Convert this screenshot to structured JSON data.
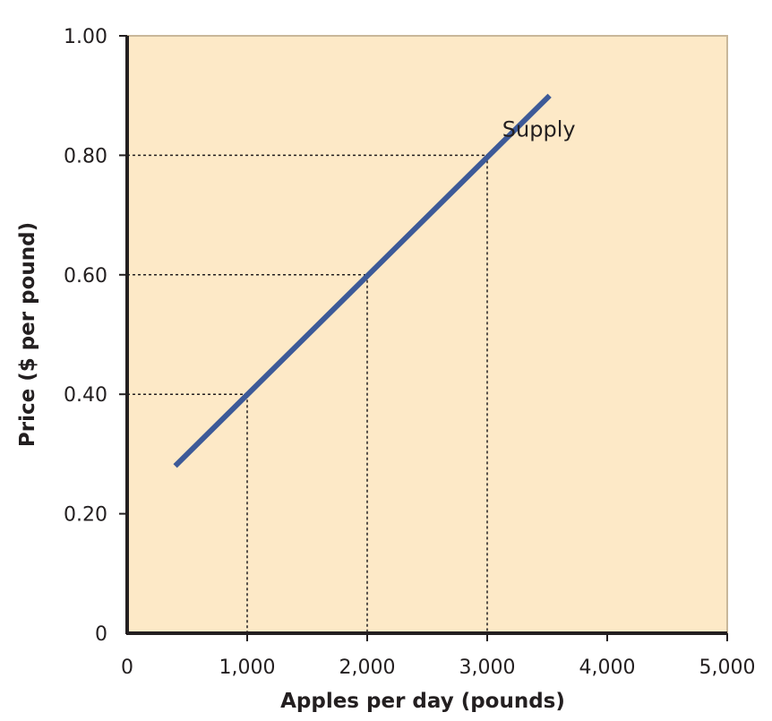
{
  "chart_data": {
    "type": "line",
    "title": "",
    "xlabel": "Apples per day (pounds)",
    "ylabel": "Price ($ per pound)",
    "xlim": [
      0,
      5000
    ],
    "ylim": [
      0,
      1.0
    ],
    "x_ticks": [
      0,
      1000,
      2000,
      3000,
      4000,
      5000
    ],
    "x_tick_labels": [
      "0",
      "1,000",
      "2,000",
      "3,000",
      "4,000",
      "5,000"
    ],
    "y_ticks": [
      0,
      0.2,
      0.4,
      0.6,
      0.8,
      1.0
    ],
    "y_tick_labels": [
      "0",
      "0.20",
      "0.40",
      "0.60",
      "0.80",
      "1.00"
    ],
    "grid": false,
    "series": [
      {
        "name": "Supply",
        "x": [
          400,
          3520
        ],
        "y": [
          0.28,
          0.9
        ]
      }
    ],
    "reference_points": [
      {
        "x": 1000,
        "y": 0.4
      },
      {
        "x": 2000,
        "y": 0.6
      },
      {
        "x": 3000,
        "y": 0.8
      }
    ],
    "colors": {
      "plot_background": "#fde9c7",
      "line": "#3d5a98",
      "axis": "#231f20",
      "guide": "#231f20"
    }
  }
}
